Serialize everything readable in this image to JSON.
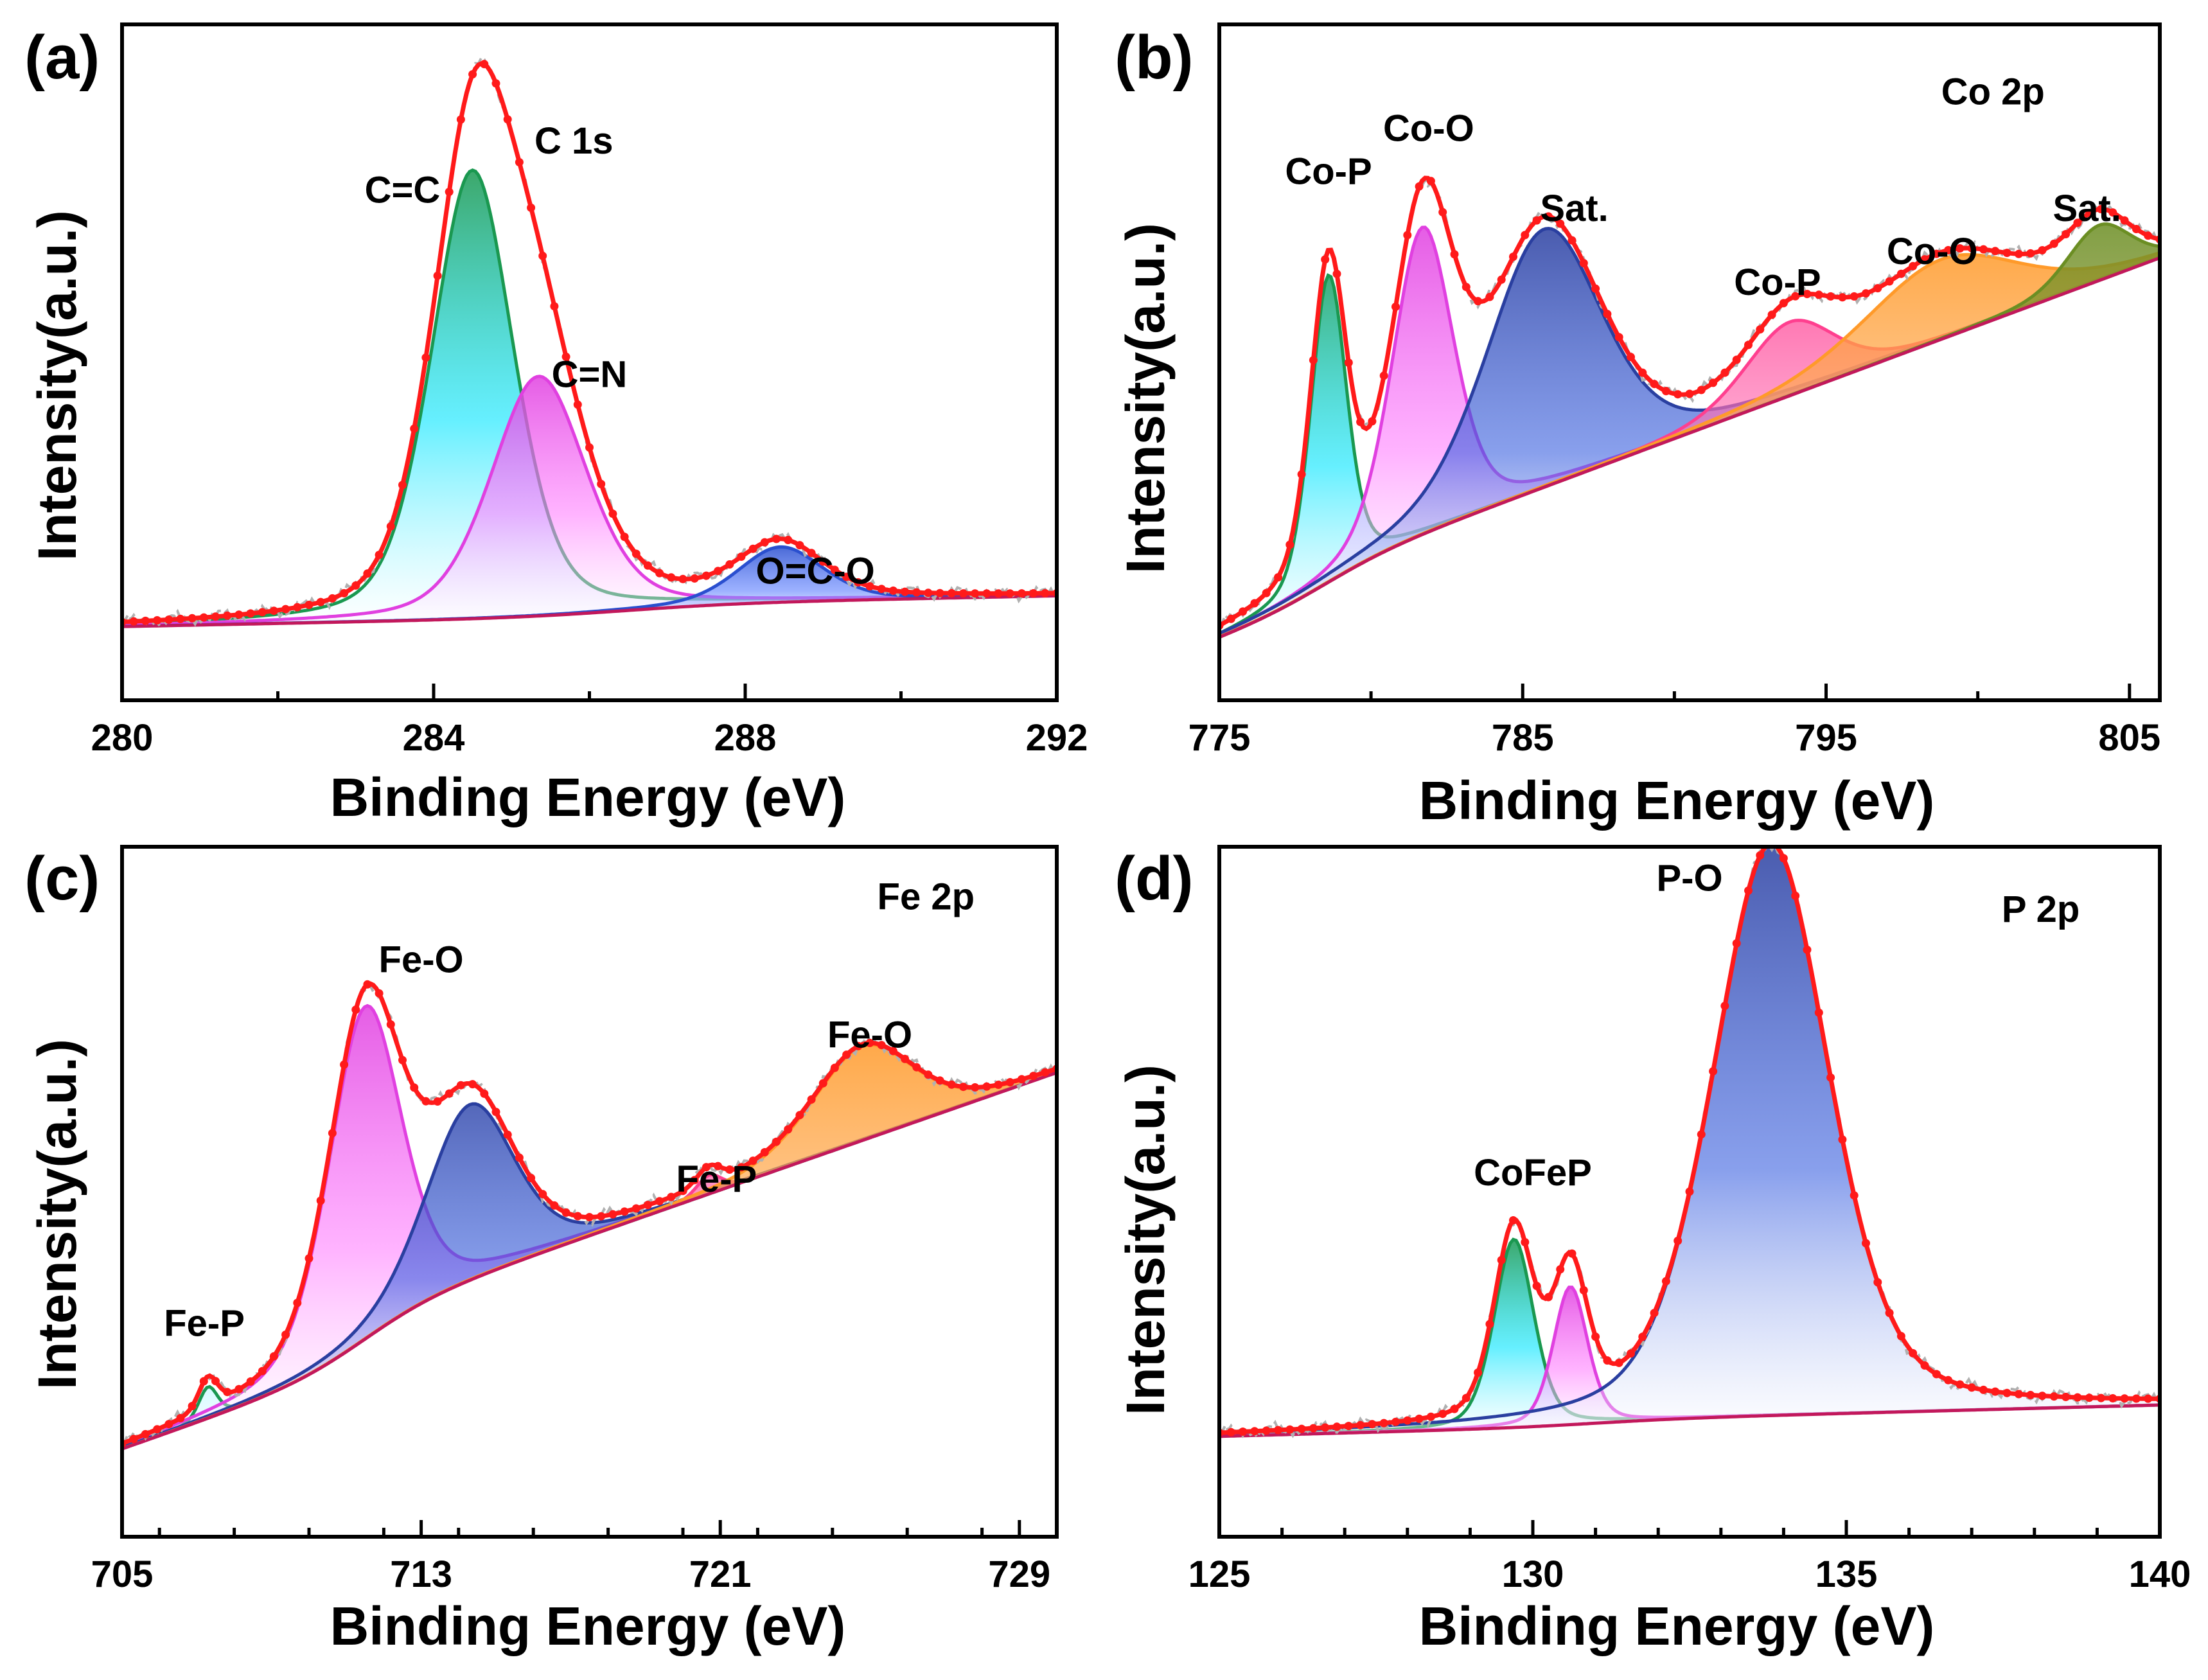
{
  "chart_data": [
    {
      "type": "line",
      "panel_label": "(a)",
      "title": "C 1s",
      "xlabel": "Binding Energy (eV)",
      "ylabel": "Intensity(a.u.)",
      "xlim": [
        280,
        292
      ],
      "ylim": [
        0,
        1.1
      ],
      "xticks": [
        "280",
        "284",
        "288",
        "292"
      ],
      "xtick_values": [
        280,
        284,
        288,
        292
      ],
      "minor_step": 2,
      "background": {
        "x0": 280,
        "y0": 0.12,
        "x1": 292,
        "y1": 0.15,
        "step_center": 286.5,
        "step_height": 0.02,
        "step_width": 0.8
      },
      "peaks": [
        {
          "name": "C=C",
          "center": 284.5,
          "height": 0.73,
          "fwhm": 1.25,
          "color": "#1a9850",
          "fill": "#00e5ff"
        },
        {
          "name": "C=N",
          "center": 285.35,
          "height": 0.39,
          "fwhm": 1.45,
          "color": "#e040e0",
          "fill": "#ff80ff"
        },
        {
          "name": "O=C-O",
          "center": 288.45,
          "height": 0.09,
          "fwhm": 1.3,
          "color": "#2a4fcf",
          "fill": "#5a7dff"
        }
      ],
      "annotations": [
        {
          "text": "C=C",
          "x": 283.6,
          "y": 0.81
        },
        {
          "text": "C=N",
          "x": 286.0,
          "y": 0.51
        },
        {
          "text": "O=C-O",
          "x": 288.9,
          "y": 0.19
        }
      ],
      "title_pos": [
        285.8,
        0.89
      ]
    },
    {
      "type": "line",
      "panel_label": "(b)",
      "title": "Co 2p",
      "xlabel": "Binding Energy (eV)",
      "ylabel": "Intensity(a.u.)",
      "xlim": [
        775,
        806
      ],
      "ylim": [
        0,
        1.1
      ],
      "xticks": [
        "775",
        "785",
        "795",
        "805"
      ],
      "xtick_values": [
        775,
        785,
        795,
        805
      ],
      "minor_step": 5,
      "background": {
        "x0": 775,
        "y0": 0.1,
        "x1": 806,
        "y1": 0.67,
        "step_center": 778.5,
        "step_height": 0.05,
        "step_width": 1.2
      },
      "peaks": [
        {
          "name": "Co-P",
          "center": 778.6,
          "height": 0.5,
          "fwhm": 1.4,
          "color": "#1a9850",
          "fill": "#00e5ff"
        },
        {
          "name": "Co-O",
          "center": 781.7,
          "height": 0.5,
          "fwhm": 2.4,
          "color": "#e040e0",
          "fill": "#ff80ff"
        },
        {
          "name": "Sat.",
          "center": 785.7,
          "height": 0.42,
          "fwhm": 4.5,
          "color": "#2a3fa0",
          "fill": "#3a60e0"
        },
        {
          "name": "Co-P",
          "center": 793.8,
          "height": 0.12,
          "fwhm": 3.5,
          "color": "#ff3f8f",
          "fill": "#ff7fbf"
        },
        {
          "name": "Co-O",
          "center": 798.8,
          "height": 0.13,
          "fwhm": 6.0,
          "color": "#ff9a2a",
          "fill": "#ffb060"
        },
        {
          "name": "Sat.",
          "center": 804.0,
          "height": 0.09,
          "fwhm": 2.5,
          "color": "#6b8e23",
          "fill": "#9a9a3a"
        }
      ],
      "annotations": [
        {
          "text": "Co-P",
          "x": 778.6,
          "y": 0.84
        },
        {
          "text": "Co-O",
          "x": 781.9,
          "y": 0.91
        },
        {
          "text": "Sat.",
          "x": 786.7,
          "y": 0.78
        },
        {
          "text": "Co-P",
          "x": 793.4,
          "y": 0.66
        },
        {
          "text": "Co-O",
          "x": 798.5,
          "y": 0.71
        },
        {
          "text": "Sat.",
          "x": 803.6,
          "y": 0.78
        }
      ],
      "title_pos": [
        800.5,
        0.97
      ]
    },
    {
      "type": "line",
      "panel_label": "(c)",
      "title": "Fe 2p",
      "xlabel": "Binding Energy (eV)",
      "ylabel": "Intensity(a.u.)",
      "xlim": [
        705,
        730
      ],
      "ylim": [
        0,
        1.1
      ],
      "xticks": [
        "705",
        "713",
        "721",
        "729"
      ],
      "xtick_values": [
        705,
        713,
        721,
        729
      ],
      "minor_step": 2,
      "background": {
        "x0": 705,
        "y0": 0.14,
        "x1": 730,
        "y1": 0.66,
        "step_center": 711.5,
        "step_height": 0.08,
        "step_width": 1.0
      },
      "peaks": [
        {
          "name": "Fe-P",
          "center": 707.3,
          "height": 0.05,
          "fwhm": 0.6,
          "color": "#1a9850",
          "fill": "#00e5ff"
        },
        {
          "name": "Fe-O",
          "center": 711.5,
          "height": 0.53,
          "fwhm": 2.3,
          "color": "#e040e0",
          "fill": "#ff80ff"
        },
        {
          "name": "Fe-O",
          "center": 714.3,
          "height": 0.28,
          "fwhm": 2.8,
          "color": "#2a3fa0",
          "fill": "#3a60e0"
        },
        {
          "name": "Fe-P",
          "center": 720.7,
          "height": 0.03,
          "fwhm": 0.8,
          "color": "#ff3f8f",
          "fill": "#ff7fbf"
        },
        {
          "name": "Fe-O",
          "center": 724.8,
          "height": 0.15,
          "fwhm": 3.2,
          "color": "#ff9a2a",
          "fill": "#ffb060"
        }
      ],
      "annotations": [
        {
          "text": "Fe-P",
          "x": 707.2,
          "y": 0.32
        },
        {
          "text": "Fe-O",
          "x": 713.0,
          "y": 0.9
        },
        {
          "text": "Fe-P",
          "x": 720.9,
          "y": 0.55
        },
        {
          "text": "Fe-O",
          "x": 725.0,
          "y": 0.78
        }
      ],
      "title_pos": [
        726.5,
        1.0
      ]
    },
    {
      "type": "line",
      "panel_label": "(d)",
      "title": "P 2p",
      "xlabel": "Binding Energy (eV)",
      "ylabel": "Intensity(a.u.)",
      "xlim": [
        125,
        140
      ],
      "ylim": [
        0,
        1.1
      ],
      "xticks": [
        "125",
        "130",
        "135",
        "140"
      ],
      "xtick_values": [
        125,
        130,
        135,
        140
      ],
      "minor_step": 1,
      "background": {
        "x0": 125,
        "y0": 0.16,
        "x1": 140,
        "y1": 0.2,
        "step_center": 131.0,
        "step_height": 0.01,
        "step_width": 0.8
      },
      "peaks": [
        {
          "name": "CoFeP",
          "center": 129.7,
          "height": 0.3,
          "fwhm": 0.75,
          "color": "#1a9850",
          "fill": "#00e5ff"
        },
        {
          "name": "CoFeP",
          "center": 130.6,
          "height": 0.22,
          "fwhm": 0.65,
          "color": "#e040e0",
          "fill": "#ff80ff"
        },
        {
          "name": "P-O",
          "center": 133.8,
          "height": 0.91,
          "fwhm": 2.2,
          "color": "#2a3fa0",
          "fill": "#3a60e0"
        }
      ],
      "annotations": [
        {
          "text": "CoFeP",
          "x": 130.0,
          "y": 0.56
        },
        {
          "text": "P-O",
          "x": 132.5,
          "y": 1.03
        }
      ],
      "title_pos": [
        138.1,
        0.98
      ]
    }
  ]
}
